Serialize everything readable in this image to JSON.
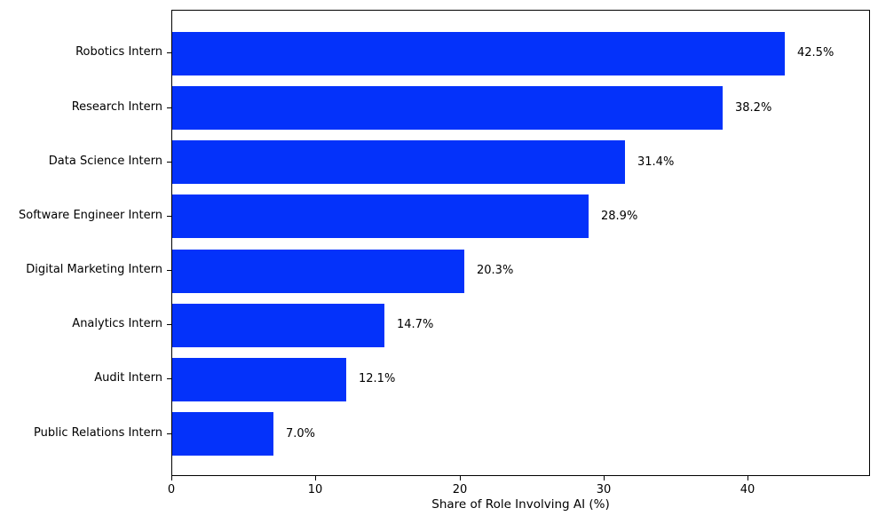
{
  "figure": {
    "background": "#ffffff"
  },
  "chart_data": {
    "type": "bar",
    "orientation": "horizontal",
    "title": "",
    "xlabel": "Share of Role Involving AI (%)",
    "ylabel": "",
    "categories": [
      "Robotics Intern",
      "Research Intern",
      "Data Science Intern",
      "Software Engineer Intern",
      "Digital Marketing Intern",
      "Analytics Intern",
      "Audit Intern",
      "Public Relations Intern"
    ],
    "values": [
      42.5,
      38.2,
      31.4,
      28.9,
      20.3,
      14.7,
      12.1,
      7.0
    ],
    "value_labels": [
      "42.5%",
      "38.2%",
      "31.4%",
      "28.9%",
      "20.3%",
      "14.7%",
      "12.1%",
      "7.0%"
    ],
    "x_ticks": [
      0,
      10,
      20,
      30,
      40
    ],
    "x_tick_labels": [
      "0",
      "10",
      "20",
      "30",
      "40"
    ],
    "xlim": [
      0,
      48.5
    ],
    "bar_color": "#0432fa",
    "axis_color": "#000000",
    "text_color": "#000000",
    "grid": false,
    "legend": null
  }
}
